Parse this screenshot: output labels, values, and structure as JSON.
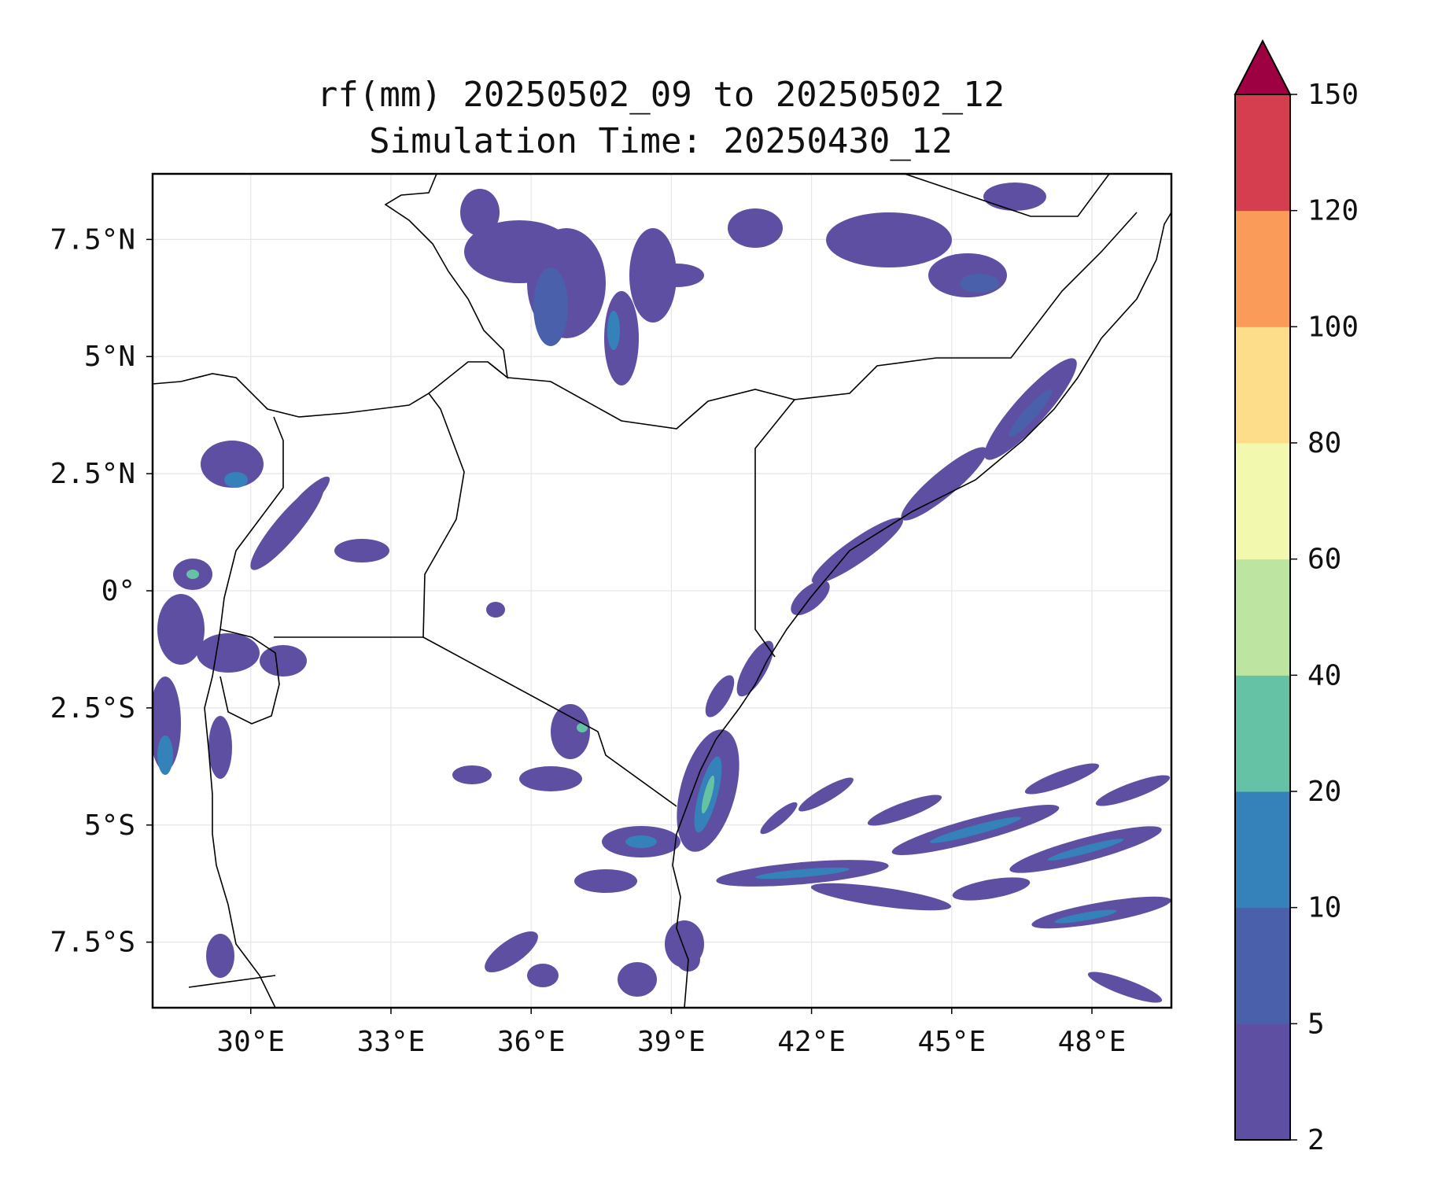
{
  "title": {
    "line1": "rf(mm) 20250502_09 to 20250502_12",
    "line2": "Simulation Time: 20250430_12"
  },
  "map": {
    "lon_range": [
      27.9,
      49.7
    ],
    "lat_range": [
      -8.9,
      8.9
    ],
    "lon_ticks": [
      {
        "value": 30,
        "label": "30°E"
      },
      {
        "value": 33,
        "label": "33°E"
      },
      {
        "value": 36,
        "label": "36°E"
      },
      {
        "value": 39,
        "label": "39°E"
      },
      {
        "value": 42,
        "label": "42°E"
      },
      {
        "value": 45,
        "label": "45°E"
      },
      {
        "value": 48,
        "label": "48°E"
      }
    ],
    "lat_ticks": [
      {
        "value": 7.5,
        "label": "7.5°N"
      },
      {
        "value": 5,
        "label": "5°N"
      },
      {
        "value": 2.5,
        "label": "2.5°N"
      },
      {
        "value": 0,
        "label": "0°"
      },
      {
        "value": -2.5,
        "label": "2.5°S"
      },
      {
        "value": -5,
        "label": "5°S"
      },
      {
        "value": -7.5,
        "label": "7.5°S"
      }
    ],
    "gridlines": true
  },
  "colorbar": {
    "extend": "max",
    "extend_color": "#9e0142",
    "bins": [
      {
        "from": 2,
        "to": 5,
        "color": "#5e4fa2"
      },
      {
        "from": 5,
        "to": 10,
        "color": "#4a60aa"
      },
      {
        "from": 10,
        "to": 20,
        "color": "#3582ba"
      },
      {
        "from": 20,
        "to": 40,
        "color": "#66c2a5"
      },
      {
        "from": 40,
        "to": 60,
        "color": "#bde4a0"
      },
      {
        "from": 60,
        "to": 80,
        "color": "#f2f9ae"
      },
      {
        "from": 80,
        "to": 100,
        "color": "#fddd89"
      },
      {
        "from": 100,
        "to": 120,
        "color": "#fa9b59"
      },
      {
        "from": 120,
        "to": 150,
        "color": "#d53e4f"
      }
    ],
    "tick_labels": [
      "2",
      "5",
      "10",
      "20",
      "40",
      "60",
      "80",
      "100",
      "120",
      "150"
    ]
  }
}
